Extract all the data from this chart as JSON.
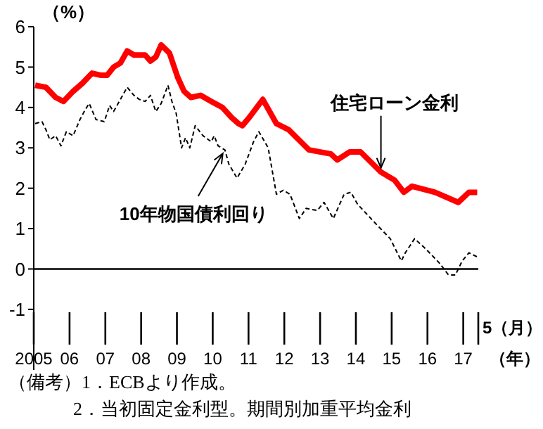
{
  "chart_data": {
    "type": "line",
    "ylabel": "（%）",
    "xlabel": "（年）",
    "xlim": [
      2005,
      2017.42
    ],
    "ylim": [
      -2.5,
      6
    ],
    "yticks": [
      -1,
      0,
      1,
      2,
      3,
      4,
      5,
      6
    ],
    "xticks": [
      {
        "value": 2005,
        "label": "2005"
      },
      {
        "value": 2006,
        "label": "06"
      },
      {
        "value": 2007,
        "label": "07"
      },
      {
        "value": 2008,
        "label": "08"
      },
      {
        "value": 2009,
        "label": "09"
      },
      {
        "value": 2010,
        "label": "10"
      },
      {
        "value": 2011,
        "label": "11"
      },
      {
        "value": 2012,
        "label": "12"
      },
      {
        "value": 2013,
        "label": "13"
      },
      {
        "value": 2014,
        "label": "14"
      },
      {
        "value": 2015,
        "label": "15"
      },
      {
        "value": 2016,
        "label": "16"
      },
      {
        "value": 2017,
        "label": "17"
      }
    ],
    "grid": false,
    "marker": "none",
    "ref_lines": [
      {
        "axis": "y",
        "value": 0,
        "color": "#000000"
      }
    ],
    "series": [
      {
        "name": "住宅ローン金利",
        "color": "#ff0000",
        "line_style": "solid",
        "x": [
          2005.04,
          2005.34,
          2005.61,
          2005.83,
          2006.1,
          2006.36,
          2006.63,
          2006.86,
          2007.05,
          2007.23,
          2007.42,
          2007.61,
          2007.8,
          2008.11,
          2008.26,
          2008.41,
          2008.56,
          2008.79,
          2009.02,
          2009.2,
          2009.39,
          2009.66,
          2009.96,
          2010.27,
          2010.53,
          2010.72,
          2010.83,
          2011.02,
          2011.4,
          2011.78,
          2012.12,
          2012.69,
          2013.3,
          2013.48,
          2013.83,
          2014.13,
          2014.7,
          2015.08,
          2015.34,
          2015.57,
          2016.21,
          2016.86,
          2017.16,
          2017.39
        ],
        "values": [
          4.55,
          4.5,
          4.25,
          4.15,
          4.4,
          4.6,
          4.85,
          4.8,
          4.8,
          5.0,
          5.1,
          5.4,
          5.3,
          5.3,
          5.15,
          5.25,
          5.55,
          5.35,
          4.75,
          4.4,
          4.25,
          4.3,
          4.15,
          4.0,
          3.75,
          3.6,
          3.55,
          3.75,
          4.2,
          3.6,
          3.45,
          2.95,
          2.85,
          2.7,
          2.9,
          2.9,
          2.4,
          2.2,
          1.9,
          2.05,
          1.9,
          1.65,
          1.9,
          1.9
        ]
      },
      {
        "name": "10年物国債利回り",
        "color": "#000000",
        "line_style": "dashed",
        "x": [
          2005.04,
          2005.23,
          2005.34,
          2005.45,
          2005.61,
          2005.76,
          2005.91,
          2006.1,
          2006.29,
          2006.44,
          2006.55,
          2006.74,
          2006.97,
          2007.12,
          2007.23,
          2007.42,
          2007.61,
          2007.8,
          2007.95,
          2008.11,
          2008.26,
          2008.41,
          2008.56,
          2008.75,
          2008.86,
          2008.98,
          2009.13,
          2009.24,
          2009.36,
          2009.51,
          2009.73,
          2009.96,
          2010.04,
          2010.15,
          2010.34,
          2010.45,
          2010.68,
          2010.91,
          2011.14,
          2011.29,
          2011.55,
          2011.78,
          2011.97,
          2012.16,
          2012.42,
          2012.61,
          2012.92,
          2013.11,
          2013.37,
          2013.67,
          2013.86,
          2014.05,
          2014.58,
          2014.96,
          2015.27,
          2015.38,
          2015.64,
          2015.95,
          2016.33,
          2016.59,
          2016.78,
          2016.97,
          2017.16,
          2017.39
        ],
        "values": [
          3.6,
          3.65,
          3.45,
          3.2,
          3.3,
          3.05,
          3.4,
          3.3,
          3.7,
          3.95,
          4.1,
          3.7,
          3.65,
          4.05,
          3.9,
          4.2,
          4.5,
          4.3,
          4.2,
          4.15,
          4.3,
          3.9,
          4.1,
          4.55,
          4.15,
          3.85,
          3.0,
          3.25,
          3.0,
          3.55,
          3.3,
          3.15,
          3.3,
          3.05,
          2.95,
          2.6,
          2.25,
          2.6,
          3.15,
          3.4,
          3.0,
          1.85,
          1.95,
          1.85,
          1.25,
          1.5,
          1.45,
          1.65,
          1.25,
          1.85,
          1.9,
          1.6,
          1.1,
          0.75,
          0.2,
          0.4,
          0.75,
          0.5,
          0.15,
          -0.15,
          -0.15,
          0.2,
          0.4,
          0.3
        ]
      }
    ],
    "annotations": [
      "5（月）",
      "（備考）1．ECBより作成。",
      "2．当初固定金利型。期間別加重平均金利"
    ]
  }
}
